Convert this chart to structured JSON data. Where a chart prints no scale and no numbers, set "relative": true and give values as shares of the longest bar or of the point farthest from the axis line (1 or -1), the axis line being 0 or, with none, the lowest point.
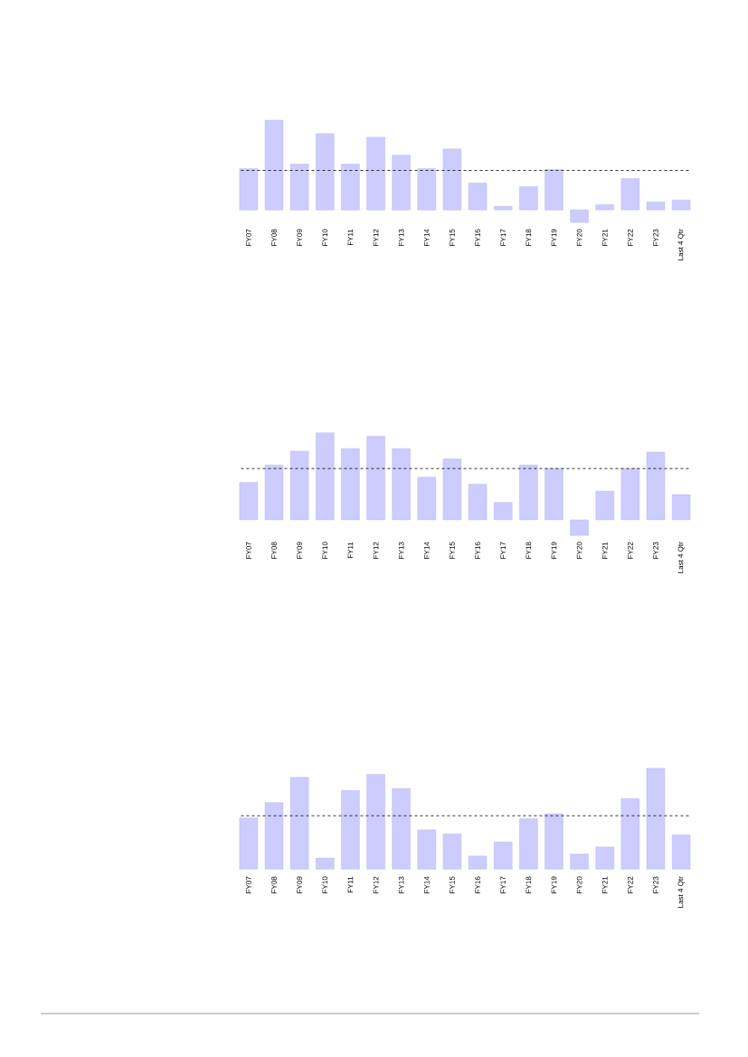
{
  "chart_data": [
    {
      "type": "bar",
      "relative": true,
      "color": "#ccccff",
      "categories": [
        "FY07",
        "FY08",
        "FY09",
        "FY10",
        "FY11",
        "FY12",
        "FY13",
        "FY14",
        "FY15",
        "FY16",
        "FY17",
        "FY18",
        "FY19",
        "FY20",
        "FY21",
        "FY22",
        "FY23",
        "Last 4 Qtr"
      ],
      "values": [
        0.46,
        1,
        0.51,
        0.85,
        0.51,
        0.81,
        0.61,
        0.46,
        0.68,
        0.3,
        0.04,
        0.26,
        0.45,
        -0.14,
        0.06,
        0.35,
        0.09,
        0.11
      ],
      "ref_lines": [
        {
          "axis": "y",
          "value": 0.44,
          "line_style": "dashed",
          "color": "#000000"
        }
      ]
    },
    {
      "type": "bar",
      "relative": true,
      "color": "#ccccff",
      "categories": [
        "FY07",
        "FY08",
        "FY09",
        "FY10",
        "FY11",
        "FY12",
        "FY13",
        "FY14",
        "FY15",
        "FY16",
        "FY17",
        "FY18",
        "FY19",
        "FY20",
        "FY21",
        "FY22",
        "FY23",
        "Last 4 Qtr"
      ],
      "values": [
        0.43,
        0.63,
        0.79,
        1,
        0.82,
        0.96,
        0.82,
        0.49,
        0.7,
        0.41,
        0.2,
        0.63,
        0.59,
        -0.18,
        0.33,
        0.59,
        0.78,
        0.29
      ],
      "ref_lines": [
        {
          "axis": "y",
          "value": 0.59,
          "line_style": "dashed",
          "color": "#000000"
        }
      ]
    },
    {
      "type": "bar",
      "relative": true,
      "color": "#ccccff",
      "categories": [
        "FY07",
        "FY08",
        "FY09",
        "FY10",
        "FY11",
        "FY12",
        "FY13",
        "FY14",
        "FY15",
        "FY16",
        "FY17",
        "FY18",
        "FY19",
        "FY20",
        "FY21",
        "FY22",
        "FY23",
        "Last 4 Qtr"
      ],
      "values": [
        0.51,
        0.66,
        0.91,
        0.11,
        0.78,
        0.94,
        0.8,
        0.39,
        0.35,
        0.13,
        0.27,
        0.5,
        0.55,
        0.15,
        0.22,
        0.7,
        1,
        0.34
      ],
      "ref_lines": [
        {
          "axis": "y",
          "value": 0.53,
          "line_style": "dashed",
          "color": "#000000"
        }
      ]
    }
  ]
}
